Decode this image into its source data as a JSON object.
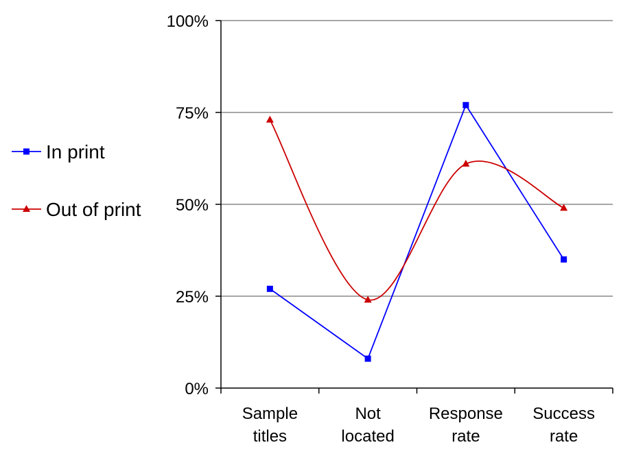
{
  "chart_data": {
    "type": "line",
    "categories": [
      [
        "Sample",
        "titles"
      ],
      [
        "Not",
        "located"
      ],
      [
        "Response",
        "rate"
      ],
      [
        "Success",
        "rate"
      ]
    ],
    "series": [
      {
        "name": "In print",
        "values": [
          27,
          8,
          77,
          35
        ],
        "color": "#0000ff",
        "marker": "square",
        "smooth": false
      },
      {
        "name": "Out of print",
        "values": [
          73,
          24,
          61,
          49
        ],
        "color": "#cc0000",
        "marker": "triangle",
        "smooth": true
      }
    ],
    "y_ticks": [
      "0%",
      "25%",
      "50%",
      "75%",
      "100%"
    ],
    "ylim": [
      0,
      100
    ],
    "grid": true,
    "legend_position": "left"
  }
}
